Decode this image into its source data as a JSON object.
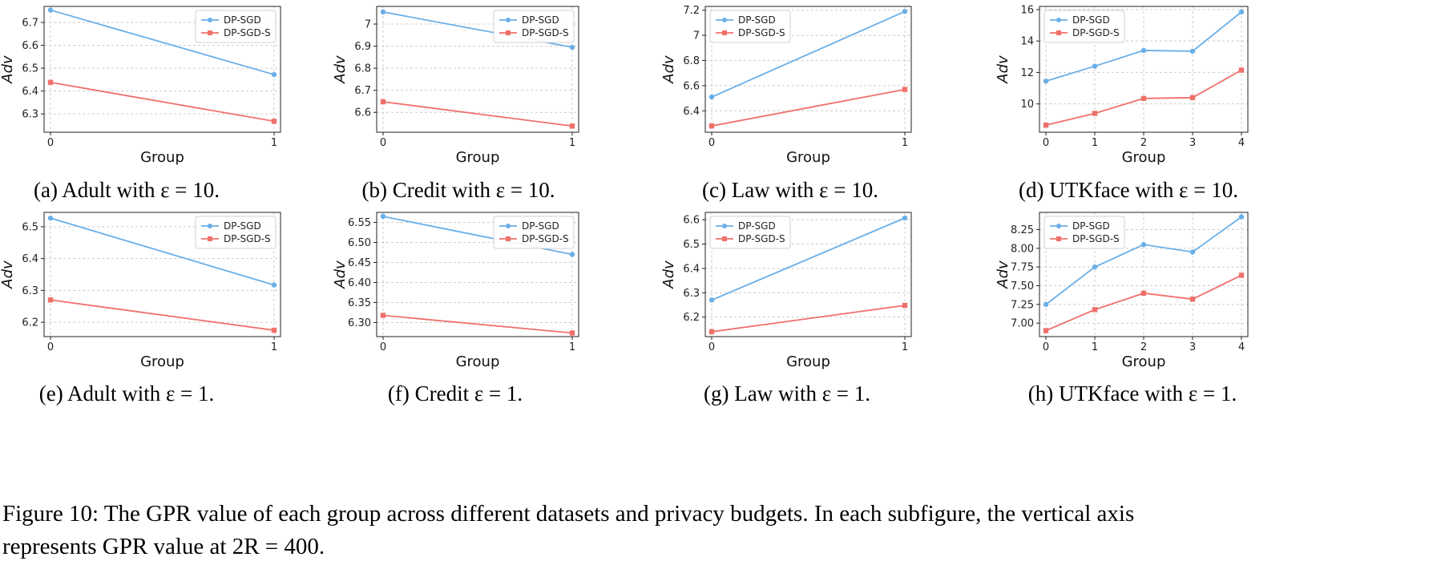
{
  "figure_caption": {
    "line1": "Figure 10: The GPR value of each group across different datasets and privacy budgets. In each subfigure, the vertical axis",
    "line2": "represents GPR value at 2R = 400."
  },
  "colors": {
    "dp_sgd": "#6aafe8",
    "dp_sgd_s": "#f0706a",
    "grid": "#cccccc"
  },
  "chart_data": [
    {
      "type": "line",
      "caption": "(a) Adult with ε = 10.",
      "xlabel": "Group",
      "ylabel": "Adv",
      "x": [
        0,
        1
      ],
      "xticks": [
        "0",
        "1"
      ],
      "ylim": [
        6.22,
        6.77
      ],
      "yticks": [
        6.3,
        6.4,
        6.5,
        6.6,
        6.7
      ],
      "grid": true,
      "legend": "top-right",
      "series": [
        {
          "name": "DP-SGD",
          "marker": "circle",
          "values": [
            6.754,
            6.472
          ]
        },
        {
          "name": "DP-SGD-S",
          "marker": "square",
          "values": [
            6.438,
            6.268
          ]
        }
      ]
    },
    {
      "type": "line",
      "caption": "(b) Credit with ε = 10.",
      "xlabel": "Group",
      "ylabel": "Adv",
      "x": [
        0,
        1
      ],
      "xticks": [
        "0",
        "1"
      ],
      "ylim": [
        6.51,
        7.08
      ],
      "yticks": [
        6.6,
        6.7,
        6.8,
        6.9,
        7.0
      ],
      "grid": true,
      "legend": "top-right",
      "series": [
        {
          "name": "DP-SGD",
          "marker": "circle",
          "values": [
            7.055,
            6.895
          ]
        },
        {
          "name": "DP-SGD-S",
          "marker": "square",
          "values": [
            6.648,
            6.538
          ]
        }
      ]
    },
    {
      "type": "line",
      "caption": "(c) Law with ε = 10.",
      "xlabel": "Group",
      "ylabel": "Adv",
      "x": [
        0,
        1
      ],
      "xticks": [
        "0",
        "1"
      ],
      "ylim": [
        6.23,
        7.23
      ],
      "yticks": [
        6.4,
        6.6,
        6.8,
        7.0,
        7.2
      ],
      "grid": true,
      "legend": "top-left",
      "series": [
        {
          "name": "DP-SGD",
          "marker": "circle",
          "values": [
            6.51,
            7.19
          ]
        },
        {
          "name": "DP-SGD-S",
          "marker": "square",
          "values": [
            6.28,
            6.57
          ]
        }
      ]
    },
    {
      "type": "line",
      "caption": "(d) UTKface with ε = 10.",
      "xlabel": "Group",
      "ylabel": "Adv",
      "x": [
        0,
        1,
        2,
        3,
        4
      ],
      "xticks": [
        "0",
        "1",
        "2",
        "3",
        "4"
      ],
      "ylim": [
        8.2,
        16.2
      ],
      "yticks": [
        10,
        12,
        14,
        16
      ],
      "grid": true,
      "legend": "top-left",
      "series": [
        {
          "name": "DP-SGD",
          "marker": "circle",
          "values": [
            11.45,
            12.4,
            13.4,
            13.35,
            15.85
          ]
        },
        {
          "name": "DP-SGD-S",
          "marker": "square",
          "values": [
            8.65,
            9.4,
            10.35,
            10.4,
            12.15
          ]
        }
      ]
    },
    {
      "type": "line",
      "caption": "(e) Adult with ε = 1.",
      "xlabel": "Group",
      "ylabel": "Adv",
      "x": [
        0,
        1
      ],
      "xticks": [
        "0",
        "1"
      ],
      "ylim": [
        6.155,
        6.545
      ],
      "yticks": [
        6.2,
        6.3,
        6.4,
        6.5
      ],
      "grid": true,
      "legend": "top-right",
      "series": [
        {
          "name": "DP-SGD",
          "marker": "circle",
          "values": [
            6.527,
            6.317
          ]
        },
        {
          "name": "DP-SGD-S",
          "marker": "square",
          "values": [
            6.27,
            6.175
          ]
        }
      ]
    },
    {
      "type": "line",
      "caption": "(f) Credit ε = 1.",
      "xlabel": "Group",
      "ylabel": "Adv",
      "x": [
        0,
        1
      ],
      "xticks": [
        "0",
        "1"
      ],
      "ylim": [
        6.265,
        6.575
      ],
      "yticks": [
        6.3,
        6.35,
        6.4,
        6.45,
        6.5,
        6.55
      ],
      "yticklabels": [
        "6.30",
        "6.35",
        "6.40",
        "6.45",
        "6.50",
        "6.55"
      ],
      "grid": true,
      "legend": "top-right",
      "series": [
        {
          "name": "DP-SGD",
          "marker": "circle",
          "values": [
            6.565,
            6.47
          ]
        },
        {
          "name": "DP-SGD-S",
          "marker": "square",
          "values": [
            6.318,
            6.274
          ]
        }
      ]
    },
    {
      "type": "line",
      "caption": "(g) Law with ε = 1.",
      "xlabel": "Group",
      "ylabel": "Adv",
      "x": [
        0,
        1
      ],
      "xticks": [
        "0",
        "1"
      ],
      "ylim": [
        6.12,
        6.63
      ],
      "yticks": [
        6.2,
        6.3,
        6.4,
        6.5,
        6.6
      ],
      "grid": true,
      "legend": "top-left",
      "series": [
        {
          "name": "DP-SGD",
          "marker": "circle",
          "values": [
            6.27,
            6.607
          ]
        },
        {
          "name": "DP-SGD-S",
          "marker": "square",
          "values": [
            6.14,
            6.248
          ]
        }
      ]
    },
    {
      "type": "line",
      "caption": "(h) UTKface with ε = 1.",
      "xlabel": "Group",
      "ylabel": "Adv",
      "x": [
        0,
        1,
        2,
        3,
        4
      ],
      "xticks": [
        "0",
        "1",
        "2",
        "3",
        "4"
      ],
      "ylim": [
        6.82,
        8.48
      ],
      "yticks": [
        7.0,
        7.25,
        7.5,
        7.75,
        8.0,
        8.25
      ],
      "yticklabels": [
        "7.00",
        "7.25",
        "7.50",
        "7.75",
        "8.00",
        "8.25"
      ],
      "grid": true,
      "legend": "top-left",
      "series": [
        {
          "name": "DP-SGD",
          "marker": "circle",
          "values": [
            7.25,
            7.75,
            8.05,
            7.95,
            8.42
          ]
        },
        {
          "name": "DP-SGD-S",
          "marker": "square",
          "values": [
            6.9,
            7.18,
            7.4,
            7.32,
            7.64
          ]
        }
      ]
    }
  ]
}
